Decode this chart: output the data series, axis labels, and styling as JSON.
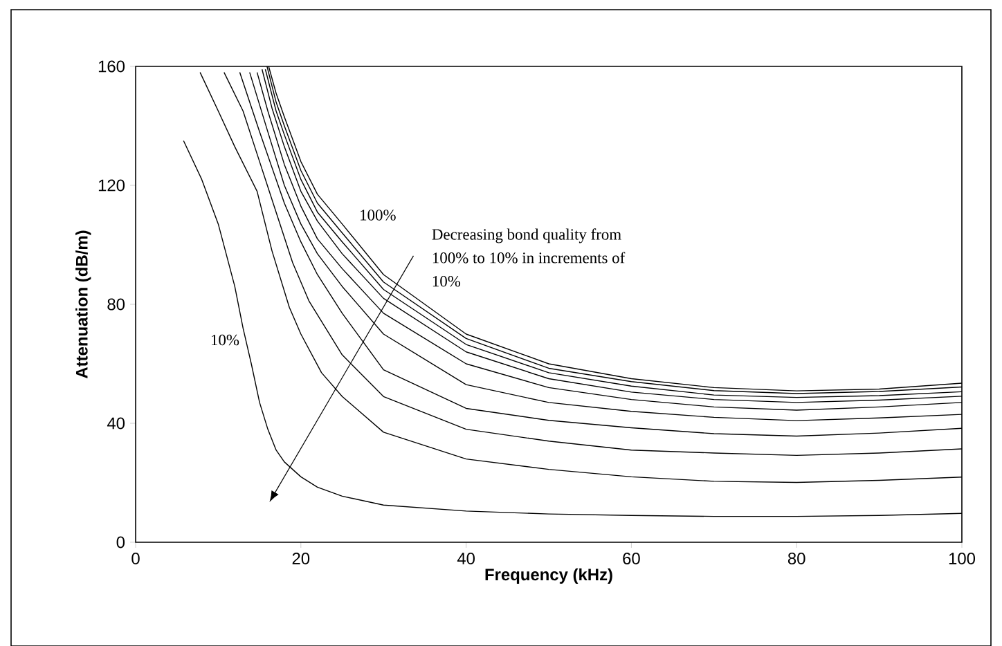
{
  "chart_data": {
    "type": "line",
    "xlabel": "Frequency (kHz)",
    "ylabel": "Attenuation (dB/m)",
    "xlim": [
      0,
      100
    ],
    "ylim": [
      0,
      160
    ],
    "xticks": [
      0,
      20,
      40,
      60,
      80,
      100
    ],
    "yticks": [
      0,
      40,
      80,
      120,
      160
    ],
    "grid": false,
    "marker": "none",
    "line_style": "solid",
    "annotations": [
      "100%",
      "10%",
      "Decreasing bond quality from 100% to 10% in increments of 10%"
    ],
    "series": [
      {
        "color": "#000000",
        "x": [
          5.8,
          8,
          10,
          12,
          13,
          14,
          15,
          16,
          17,
          18,
          20,
          22,
          25,
          30,
          40,
          50,
          60,
          70,
          80,
          90,
          100
        ],
        "values": [
          135,
          122,
          107,
          86,
          72,
          60,
          47,
          38,
          31,
          27,
          22,
          18.5,
          15.5,
          12.5,
          10.5,
          9.5,
          9,
          8.7,
          8.7,
          9,
          9.7
        ]
      },
      {
        "color": "#000000",
        "x": [
          7.8,
          10,
          12,
          14.7,
          16.5,
          18.6,
          20,
          22.5,
          25,
          30,
          40,
          50,
          60,
          70,
          80,
          90,
          100
        ],
        "values": [
          158,
          145,
          133,
          118,
          98,
          79,
          70,
          57,
          49,
          37,
          28,
          24.5,
          22,
          20.5,
          20.1,
          20.8,
          21.9
        ]
      },
      {
        "color": "#000000",
        "x": [
          10.7,
          13,
          15,
          17,
          19,
          21,
          25,
          30,
          40,
          50,
          60,
          70,
          80,
          90,
          100
        ],
        "values": [
          158,
          145,
          128,
          111,
          94,
          81,
          63,
          49,
          38,
          34,
          31,
          30,
          29.2,
          30,
          31.4
        ]
      },
      {
        "color": "#000000",
        "x": [
          12.6,
          15,
          18,
          20,
          22,
          25,
          30,
          40,
          50,
          60,
          70,
          80,
          90,
          100
        ],
        "values": [
          158,
          138,
          114,
          101,
          90,
          77,
          58,
          45,
          41,
          38.5,
          36.5,
          35.7,
          36.7,
          38.3
        ]
      },
      {
        "color": "#000000",
        "x": [
          13.8,
          16,
          18,
          20,
          22,
          25,
          30,
          40,
          50,
          60,
          70,
          80,
          90,
          100
        ],
        "values": [
          158,
          138,
          120,
          107,
          97,
          86,
          70,
          53,
          47,
          44,
          42,
          40.9,
          41.8,
          43
        ]
      },
      {
        "color": "#000000",
        "x": [
          14.7,
          16,
          18,
          20,
          22,
          25,
          30,
          40,
          50,
          60,
          70,
          80,
          90,
          100
        ],
        "values": [
          158,
          145,
          127,
          113,
          102,
          92,
          77,
          60,
          52,
          48,
          45.5,
          44.4,
          45.5,
          47
        ]
      },
      {
        "color": "#000000",
        "x": [
          15.3,
          16.5,
          18,
          20,
          22,
          25,
          30,
          40,
          50,
          60,
          70,
          80,
          90,
          100
        ],
        "values": [
          159,
          146,
          133,
          118,
          108,
          97,
          82,
          64,
          55,
          50.5,
          48,
          47,
          47.8,
          49.1
        ]
      },
      {
        "color": "#000000",
        "x": [
          15.7,
          17,
          18,
          20,
          22,
          25,
          30,
          40,
          50,
          60,
          70,
          80,
          90,
          100
        ],
        "values": [
          159,
          145,
          137,
          122,
          111,
          101,
          85,
          66.5,
          57,
          52.5,
          49.5,
          48.7,
          49.3,
          50.6
        ]
      },
      {
        "color": "#000000",
        "x": [
          15.9,
          17,
          18,
          20,
          22,
          25,
          30,
          40,
          50,
          60,
          70,
          80,
          90,
          100
        ],
        "values": [
          160,
          148,
          140,
          125,
          114,
          104,
          87.5,
          68.5,
          58.5,
          54,
          51,
          50,
          50.7,
          52.2
        ]
      },
      {
        "color": "#000000",
        "x": [
          16.1,
          17,
          18,
          20,
          22,
          25,
          30,
          40,
          50,
          60,
          70,
          80,
          90,
          100
        ],
        "values": [
          160,
          151,
          143,
          128,
          117,
          107,
          90,
          70,
          60,
          55,
          52,
          50.9,
          51.5,
          53.5
        ]
      }
    ]
  }
}
